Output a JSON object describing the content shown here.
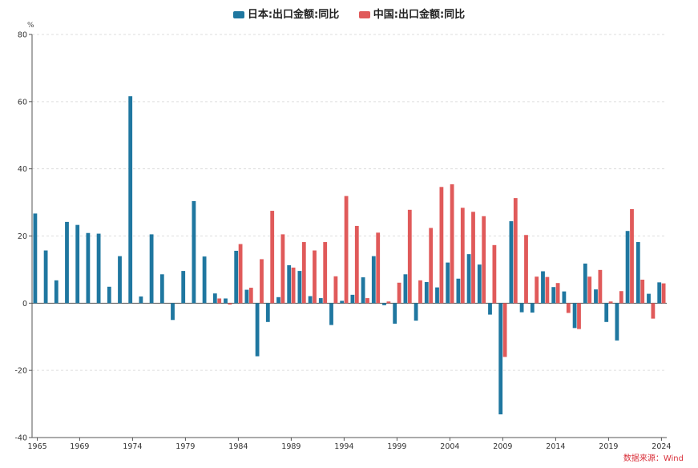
{
  "chart_data": {
    "type": "bar",
    "title": "",
    "unit": "%",
    "xlabel": "",
    "ylabel": "",
    "ylim": [
      -40,
      80
    ],
    "yticks": [
      -40,
      -20,
      0,
      20,
      40,
      60,
      80
    ],
    "xtick_labels": [
      "1965",
      "1969",
      "1974",
      "1979",
      "1984",
      "1989",
      "1994",
      "1999",
      "2004",
      "2009",
      "2014",
      "2019",
      "2024"
    ],
    "grid": true,
    "legend_position": "top-center",
    "categories": [
      1965,
      1966,
      1967,
      1968,
      1969,
      1970,
      1971,
      1972,
      1973,
      1974,
      1975,
      1976,
      1977,
      1978,
      1979,
      1980,
      1981,
      1982,
      1983,
      1984,
      1985,
      1986,
      1987,
      1988,
      1989,
      1990,
      1991,
      1992,
      1993,
      1994,
      1995,
      1996,
      1997,
      1998,
      1999,
      2000,
      2001,
      2002,
      2003,
      2004,
      2005,
      2006,
      2007,
      2008,
      2009,
      2010,
      2011,
      2012,
      2013,
      2014,
      2015,
      2016,
      2017,
      2018,
      2019,
      2020,
      2021,
      2022,
      2023,
      2024
    ],
    "series": [
      {
        "name": "日本:出口金额:同比",
        "color": "#1f77a0",
        "values": [
          26.7,
          15.7,
          6.8,
          24.2,
          23.3,
          20.9,
          20.7,
          4.9,
          14.0,
          61.6,
          2.0,
          20.5,
          8.6,
          -5.0,
          9.6,
          30.4,
          13.9,
          2.9,
          1.4,
          15.6,
          4.0,
          -15.8,
          -5.6,
          1.8,
          11.3,
          9.6,
          2.1,
          1.5,
          -6.5,
          0.7,
          2.5,
          7.7,
          14.0,
          -0.6,
          -6.1,
          8.6,
          -5.2,
          6.3,
          4.7,
          12.1,
          7.3,
          14.6,
          11.5,
          -3.4,
          -33.1,
          24.4,
          -2.7,
          -2.8,
          9.5,
          4.8,
          3.5,
          -7.4,
          11.8,
          4.1,
          -5.6,
          -11.1,
          21.5,
          18.2,
          2.8,
          6.2
        ]
      },
      {
        "name": "中国:出口金额:同比",
        "color": "#e05a5a",
        "values": [
          null,
          null,
          null,
          null,
          null,
          null,
          null,
          null,
          null,
          null,
          null,
          null,
          null,
          null,
          null,
          null,
          null,
          1.4,
          -0.4,
          17.6,
          4.6,
          13.1,
          27.5,
          20.5,
          10.6,
          18.2,
          15.7,
          18.2,
          8.0,
          31.9,
          23.0,
          1.5,
          21.0,
          0.5,
          6.1,
          27.8,
          6.8,
          22.4,
          34.6,
          35.4,
          28.4,
          27.2,
          25.9,
          17.3,
          -16.0,
          31.3,
          20.3,
          7.9,
          7.8,
          6.0,
          -2.9,
          -7.7,
          7.9,
          9.9,
          0.5,
          3.6,
          28.0,
          7.0,
          -4.6,
          5.9
        ]
      }
    ]
  },
  "source_text": "数据来源：Wind"
}
